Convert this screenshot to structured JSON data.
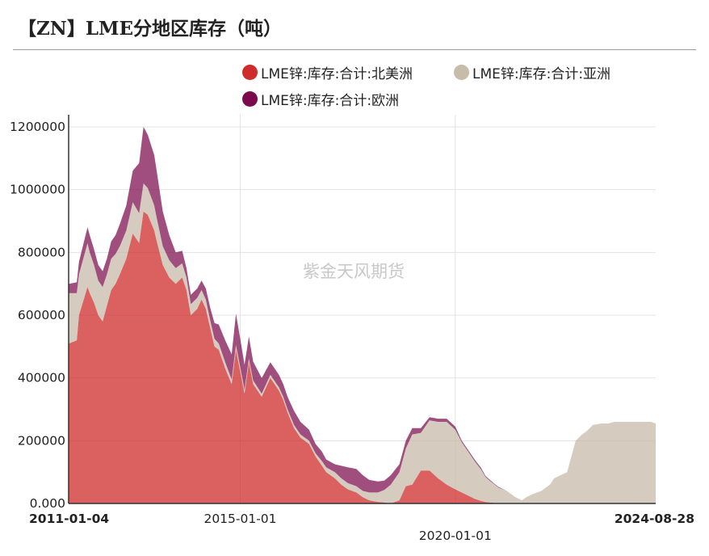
{
  "title": "【ZN】LME分地区库存（吨）",
  "watermark": "紫金天风期货",
  "colors": {
    "north_america": "#cf2b2b",
    "asia": "#c7bba9",
    "europe": "#7a0a4c"
  },
  "chart_data": {
    "type": "area",
    "stacked": true,
    "title": "【ZN】LME分地区库存（吨）",
    "xlabel": "",
    "ylabel": "",
    "ylim": [
      0,
      1200000
    ],
    "y_ticks": [
      "0.000",
      "200000",
      "400000",
      "600000",
      "800000",
      "1000000",
      "1200000"
    ],
    "x_ticks": [
      {
        "label": "2011-01-04",
        "t": 2011.01,
        "bold": true,
        "row": 1
      },
      {
        "label": "2015-01-01",
        "t": 2015.0,
        "bold": false,
        "row": 1
      },
      {
        "label": "2020-01-01",
        "t": 2020.0,
        "bold": false,
        "row": 2
      },
      {
        "label": "2024-08-28",
        "t": 2024.66,
        "bold": true,
        "row": 1
      }
    ],
    "xlim": [
      2011.01,
      2024.66
    ],
    "legend": [
      "LME锌:库存:合计:北美洲",
      "LME锌:库存:合计:亚洲",
      "LME锌:库存:合计:欧洲"
    ],
    "legend_position": "top",
    "t": [
      2011.01,
      2011.02,
      2011.2,
      2011.25,
      2011.45,
      2011.5,
      2011.6,
      2011.7,
      2011.8,
      2011.9,
      2012.0,
      2012.1,
      2012.2,
      2012.35,
      2012.5,
      2012.65,
      2012.75,
      2012.85,
      2013.0,
      2013.05,
      2013.2,
      2013.35,
      2013.5,
      2013.65,
      2013.75,
      2013.85,
      2014.0,
      2014.1,
      2014.2,
      2014.3,
      2014.4,
      2014.5,
      2014.65,
      2014.8,
      2014.9,
      2015.0,
      2015.1,
      2015.2,
      2015.3,
      2015.5,
      2015.7,
      2015.9,
      2016.0,
      2016.1,
      2016.25,
      2016.4,
      2016.6,
      2016.75,
      2016.9,
      2017.0,
      2017.2,
      2017.35,
      2017.5,
      2017.7,
      2017.85,
      2018.0,
      2018.2,
      2018.35,
      2018.5,
      2018.7,
      2018.85,
      2019.0,
      2019.2,
      2019.4,
      2019.6,
      2019.8,
      2020.0,
      2020.15,
      2020.3,
      2020.45,
      2020.6,
      2020.7,
      2020.8,
      2020.9,
      2021.0,
      2021.2,
      2021.4,
      2021.55,
      2021.65,
      2021.8,
      2022.0,
      2022.2,
      2022.3,
      2022.45,
      2022.6,
      2022.8,
      2022.95,
      2023.05,
      2023.2,
      2023.4,
      2023.55,
      2023.7,
      2023.85,
      2024.0,
      2024.05,
      2024.15,
      2024.25,
      2024.4,
      2024.55,
      2024.66
    ],
    "series": [
      {
        "name": "LME锌:库存:合计:北美洲",
        "values": [
          510000,
          510000,
          520000,
          600000,
          690000,
          670000,
          640000,
          600000,
          580000,
          630000,
          680000,
          700000,
          730000,
          780000,
          860000,
          830000,
          930000,
          920000,
          870000,
          840000,
          760000,
          720000,
          700000,
          720000,
          680000,
          600000,
          620000,
          650000,
          620000,
          560000,
          500000,
          490000,
          430000,
          380000,
          490000,
          420000,
          350000,
          450000,
          380000,
          340000,
          400000,
          360000,
          330000,
          290000,
          240000,
          210000,
          190000,
          150000,
          120000,
          100000,
          80000,
          60000,
          45000,
          35000,
          20000,
          10000,
          5000,
          3000,
          0,
          10000,
          55000,
          60000,
          105000,
          105000,
          80000,
          60000,
          45000,
          35000,
          25000,
          15000,
          8000,
          5000,
          3000,
          2000,
          1000,
          0,
          0,
          0,
          0,
          0,
          0,
          0,
          0,
          0,
          0,
          0,
          0,
          0,
          0,
          0,
          0,
          0,
          0,
          0,
          0,
          0,
          0,
          0,
          0,
          0
        ]
      },
      {
        "name": "LME锌:库存:合计:亚洲",
        "values": [
          160000,
          160000,
          150000,
          130000,
          140000,
          130000,
          120000,
          110000,
          110000,
          100000,
          100000,
          95000,
          90000,
          90000,
          100000,
          95000,
          90000,
          85000,
          80000,
          75000,
          60000,
          55000,
          50000,
          45000,
          40000,
          35000,
          35000,
          30000,
          30000,
          25000,
          25000,
          20000,
          20000,
          15000,
          15000,
          15000,
          12000,
          12000,
          12000,
          10000,
          10000,
          10000,
          10000,
          10000,
          10000,
          10000,
          10000,
          10000,
          15000,
          15000,
          20000,
          20000,
          20000,
          20000,
          20000,
          25000,
          30000,
          40000,
          60000,
          90000,
          120000,
          160000,
          120000,
          160000,
          180000,
          200000,
          190000,
          160000,
          140000,
          120000,
          100000,
          80000,
          70000,
          60000,
          50000,
          40000,
          20000,
          10000,
          20000,
          30000,
          40000,
          60000,
          80000,
          90000,
          100000,
          200000,
          220000,
          230000,
          250000,
          255000,
          255000,
          260000,
          260000,
          260000,
          260000,
          260000,
          260000,
          260000,
          260000,
          255000
        ]
      },
      {
        "name": "LME锌:库存:合计:欧洲",
        "values": [
          30000,
          30000,
          35000,
          40000,
          50000,
          55000,
          50000,
          50000,
          50000,
          50000,
          55000,
          60000,
          70000,
          80000,
          100000,
          160000,
          180000,
          170000,
          160000,
          150000,
          110000,
          80000,
          50000,
          40000,
          30000,
          30000,
          30000,
          30000,
          35000,
          40000,
          50000,
          60000,
          70000,
          80000,
          100000,
          90000,
          80000,
          70000,
          60000,
          50000,
          40000,
          40000,
          40000,
          40000,
          45000,
          40000,
          35000,
          30000,
          30000,
          25000,
          25000,
          40000,
          50000,
          55000,
          50000,
          40000,
          35000,
          30000,
          30000,
          25000,
          25000,
          20000,
          15000,
          10000,
          10000,
          10000,
          10000,
          5000,
          5000,
          5000,
          5000,
          3000,
          3000,
          2000,
          2000,
          0,
          0,
          0,
          0,
          0,
          0,
          0,
          0,
          0,
          0,
          0,
          0,
          0,
          0,
          0,
          0,
          0,
          0,
          0,
          0,
          0,
          0,
          0,
          0,
          0
        ]
      }
    ]
  }
}
